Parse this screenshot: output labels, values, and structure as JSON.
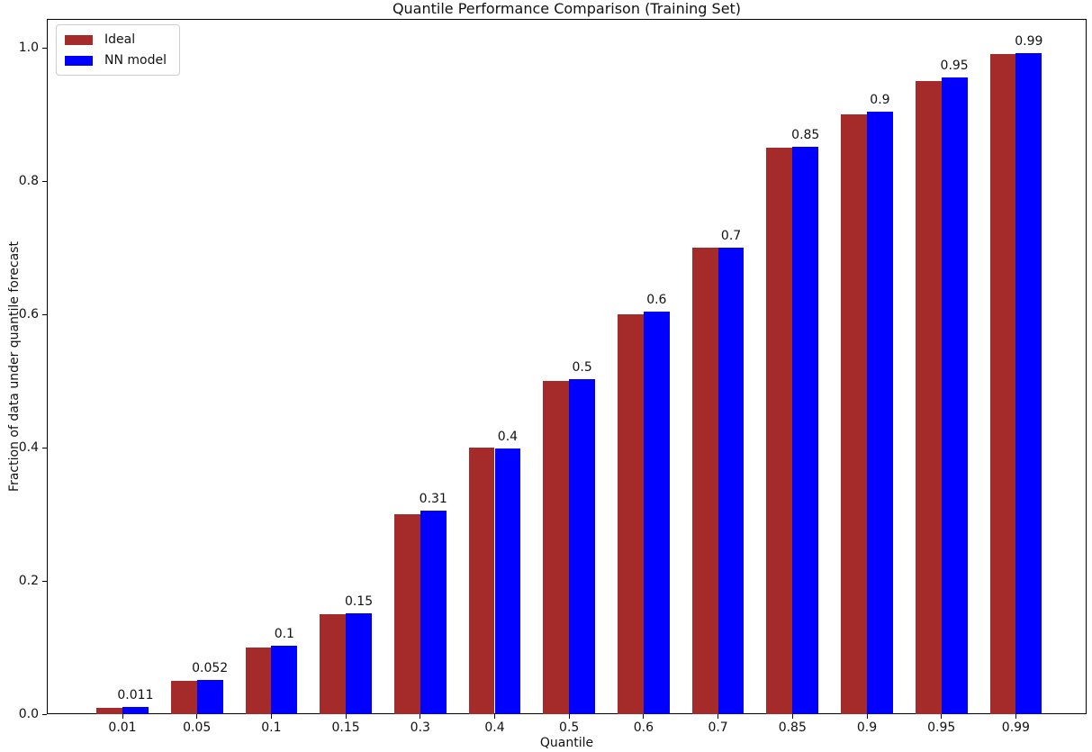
{
  "chart_data": {
    "type": "bar",
    "title": "Quantile Performance Comparison (Training Set)",
    "xlabel": "Quantile",
    "ylabel": "Fraction of data under quantile forecast",
    "categories": [
      "0.01",
      "0.05",
      "0.1",
      "0.15",
      "0.3",
      "0.4",
      "0.5",
      "0.6",
      "0.7",
      "0.85",
      "0.9",
      "0.95",
      "0.99"
    ],
    "series": [
      {
        "name": "Ideal",
        "color": "#a52a2a",
        "values": [
          0.01,
          0.05,
          0.1,
          0.15,
          0.3,
          0.4,
          0.5,
          0.6,
          0.7,
          0.85,
          0.9,
          0.95,
          0.99
        ]
      },
      {
        "name": "NN model",
        "color": "#0000ff",
        "values": [
          0.011,
          0.052,
          0.103,
          0.152,
          0.305,
          0.398,
          0.503,
          0.604,
          0.7,
          0.851,
          0.904,
          0.955,
          0.992
        ]
      }
    ],
    "bar_labels": [
      "0.011",
      "0.052",
      "0.1",
      "0.15",
      "0.31",
      "0.4",
      "0.5",
      "0.6",
      "0.7",
      "0.85",
      "0.9",
      "0.95",
      "0.99"
    ],
    "yticks": [
      "0.0",
      "0.2",
      "0.4",
      "0.6",
      "0.8",
      "1.0"
    ],
    "ylim": [
      0,
      1.043
    ],
    "grid": false,
    "legend_position": "upper-left",
    "legend_labels": [
      "Ideal",
      "NN model"
    ]
  }
}
